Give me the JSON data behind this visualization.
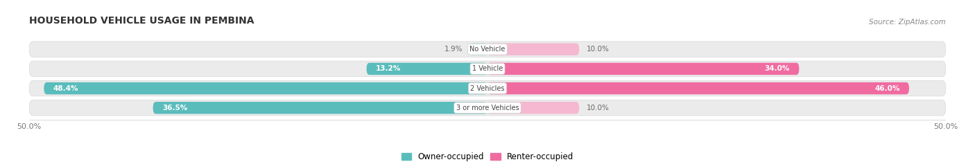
{
  "title": "HOUSEHOLD VEHICLE USAGE IN PEMBINA",
  "source": "Source: ZipAtlas.com",
  "categories": [
    "No Vehicle",
    "1 Vehicle",
    "2 Vehicles",
    "3 or more Vehicles"
  ],
  "owner_values": [
    1.9,
    13.2,
    48.4,
    36.5
  ],
  "renter_values": [
    10.0,
    34.0,
    46.0,
    10.0
  ],
  "owner_color": "#5bbcbc",
  "renter_color": "#f06ca0",
  "owner_color_light": "#aedada",
  "renter_color_light": "#f5b8d0",
  "bg_color": "#ffffff",
  "bar_bg_color": "#ebebeb",
  "bar_bg_border": "#d8d8d8",
  "owner_label": "Owner-occupied",
  "renter_label": "Renter-occupied",
  "bar_height": 0.62,
  "xlim_left": -50,
  "xlim_right": 50
}
